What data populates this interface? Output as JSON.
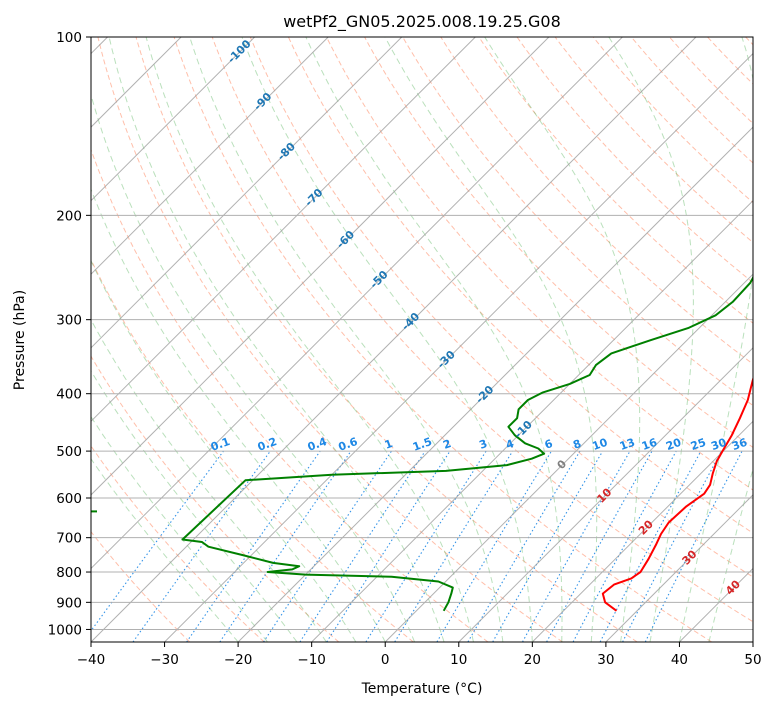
{
  "chart_data": {
    "type": "line",
    "subtype": "skew-t log-p diagram",
    "title": "wetPf2_GN05.2025.008.19.25.G08",
    "xlabel": "Temperature (°C)",
    "ylabel": "Pressure (hPa)",
    "xlim": [
      -40,
      50
    ],
    "ylim": [
      1050,
      100
    ],
    "y_scale": "log",
    "grid": true,
    "x_ticks": [
      "−40",
      "−30",
      "−20",
      "−10",
      "0",
      "10",
      "20",
      "30",
      "40",
      "50"
    ],
    "y_ticks": [
      "100",
      "200",
      "300",
      "400",
      "500",
      "600",
      "700",
      "800",
      "900",
      "1000"
    ],
    "colors": {
      "temperature": "#ff0000",
      "dewpoint": "#008000",
      "dry_adiabat": "#ff8a65",
      "moist_adiabat": "#66bb6a",
      "mixing_ratio": "#1e88e5",
      "isotherm": "#9e9e9e",
      "isotherm_label_cold": "#1f77b4",
      "isotherm_label_warm": "#d62728",
      "isotherm_label_zero": "#7f7f7f",
      "mixing_label": "#1e88e5"
    },
    "series": [
      {
        "name": "Temperature",
        "points": [
          [
            930,
            27.2
          ],
          [
            900,
            24.5
          ],
          [
            870,
            23.0
          ],
          [
            840,
            23.3
          ],
          [
            820,
            24.8
          ],
          [
            800,
            25.2
          ],
          [
            760,
            24.5
          ],
          [
            720,
            23.6
          ],
          [
            690,
            22.8
          ],
          [
            660,
            22.3
          ],
          [
            620,
            22.5
          ],
          [
            590,
            23.2
          ],
          [
            570,
            22.8
          ],
          [
            545,
            21.6
          ],
          [
            520,
            20.5
          ],
          [
            500,
            19.9
          ],
          [
            470,
            19.0
          ],
          [
            440,
            17.8
          ],
          [
            410,
            16.4
          ],
          [
            380,
            14.4
          ],
          [
            350,
            12.4
          ],
          [
            320,
            10.4
          ],
          [
            290,
            8.1
          ],
          [
            260,
            5.5
          ],
          [
            230,
            3.0
          ],
          [
            210,
            0.9
          ],
          [
            195,
            -0.8
          ],
          [
            185,
            -1.5
          ],
          [
            175,
            -1.0
          ],
          [
            165,
            0.0
          ],
          [
            150,
            1.5
          ],
          [
            135,
            2.9
          ],
          [
            120,
            3.5
          ],
          [
            110,
            3.4
          ],
          [
            104,
            3.6
          ],
          [
            100,
            4.2
          ]
        ]
      },
      {
        "name": "Dewpoint",
        "points": [
          [
            930,
            3.7
          ],
          [
            900,
            3.2
          ],
          [
            870,
            2.4
          ],
          [
            850,
            1.8
          ],
          [
            830,
            -1.0
          ],
          [
            815,
            -8.0
          ],
          [
            808,
            -20.0
          ],
          [
            800,
            -25.5
          ],
          [
            792,
            -22.5
          ],
          [
            782,
            -22.0
          ],
          [
            772,
            -26.0
          ],
          [
            750,
            -31.0
          ],
          [
            725,
            -37.0
          ],
          [
            712,
            -38.5
          ],
          [
            705,
            -41.5
          ],
          [
            560,
            -41.0
          ],
          [
            548,
            -30.0
          ],
          [
            540,
            -15.0
          ],
          [
            528,
            -7.5
          ],
          [
            515,
            -5.0
          ],
          [
            505,
            -4.0
          ],
          [
            495,
            -5.5
          ],
          [
            485,
            -8.0
          ],
          [
            470,
            -10.5
          ],
          [
            455,
            -12.5
          ],
          [
            440,
            -12.5
          ],
          [
            425,
            -13.5
          ],
          [
            410,
            -13.5
          ],
          [
            398,
            -12.5
          ],
          [
            385,
            -10.0
          ],
          [
            372,
            -8.5
          ],
          [
            358,
            -9.0
          ],
          [
            342,
            -8.5
          ],
          [
            325,
            -5.0
          ],
          [
            310,
            -1.5
          ],
          [
            295,
            0.5
          ],
          [
            280,
            1.0
          ],
          [
            260,
            0.8
          ],
          [
            240,
            -0.5
          ],
          [
            225,
            -2.0
          ],
          [
            210,
            -4.0
          ],
          [
            200,
            -5.5
          ],
          [
            190,
            -6.5
          ],
          [
            180,
            -7.5
          ],
          [
            170,
            -9.5
          ],
          [
            160,
            -12.0
          ],
          [
            150,
            -13.5
          ],
          [
            140,
            -15.5
          ],
          [
            130,
            -17.5
          ],
          [
            123,
            -17.5
          ],
          [
            118,
            -16.0
          ],
          [
            113,
            -13.0
          ],
          [
            108,
            -11.5
          ],
          [
            103,
            -10.0
          ],
          [
            100,
            -9.5
          ]
        ]
      }
    ],
    "isotherm_labels": [
      "-100",
      "-90",
      "-80",
      "-70",
      "-60",
      "-50",
      "-40",
      "-30",
      "-20",
      "-10",
      "0",
      "10",
      "20",
      "30",
      "40"
    ],
    "mixing_ratio_labels": [
      "0.1",
      "0.2",
      "0.4",
      "0.6",
      "1",
      "1.5",
      "2",
      "3",
      "4",
      "6",
      "8",
      "10",
      "13",
      "16",
      "20",
      "25",
      "30",
      "36"
    ]
  }
}
